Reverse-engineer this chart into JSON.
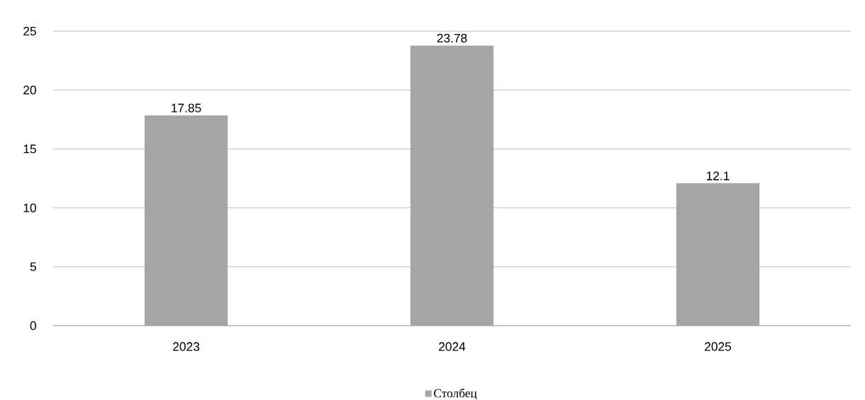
{
  "chart_data": {
    "type": "bar",
    "categories": [
      "2023",
      "2024",
      "2025"
    ],
    "series": [
      {
        "name": "Столбец",
        "color": "#a5a5a5",
        "values": [
          17.85,
          23.78,
          12.1
        ]
      }
    ],
    "ylim": [
      0,
      25
    ],
    "yticks": [
      0,
      5,
      10,
      15,
      20,
      25
    ],
    "grid": "y",
    "legend": "bottom",
    "data_labels": true
  }
}
